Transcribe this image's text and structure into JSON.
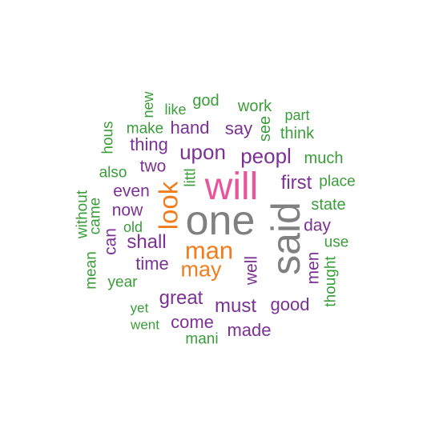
{
  "colors": {
    "background": "#ffffff",
    "grey": "#808080",
    "pink": "#e7559c",
    "orange": "#f07d1e",
    "purple": "#7b3294",
    "green": "#3a9d3a"
  },
  "words": [
    {
      "text": "one",
      "color": "grey"
    },
    {
      "text": "said",
      "color": "grey"
    },
    {
      "text": "will",
      "color": "pink"
    },
    {
      "text": "look",
      "color": "orange"
    },
    {
      "text": "man",
      "color": "orange"
    },
    {
      "text": "may",
      "color": "orange"
    },
    {
      "text": "peopl",
      "color": "purple"
    },
    {
      "text": "upon",
      "color": "purple"
    },
    {
      "text": "first",
      "color": "purple"
    },
    {
      "text": "shall",
      "color": "purple"
    },
    {
      "text": "great",
      "color": "purple"
    },
    {
      "text": "must",
      "color": "purple"
    },
    {
      "text": "time",
      "color": "purple"
    },
    {
      "text": "good",
      "color": "purple"
    },
    {
      "text": "hand",
      "color": "purple"
    },
    {
      "text": "say",
      "color": "purple"
    },
    {
      "text": "thing",
      "color": "purple"
    },
    {
      "text": "come",
      "color": "purple"
    },
    {
      "text": "made",
      "color": "purple"
    },
    {
      "text": "even",
      "color": "purple"
    },
    {
      "text": "now",
      "color": "purple"
    },
    {
      "text": "two",
      "color": "purple"
    },
    {
      "text": "day",
      "color": "purple"
    },
    {
      "text": "well",
      "color": "purple"
    },
    {
      "text": "can",
      "color": "purple"
    },
    {
      "text": "men",
      "color": "purple"
    },
    {
      "text": "work",
      "color": "green"
    },
    {
      "text": "god",
      "color": "green"
    },
    {
      "text": "like",
      "color": "green"
    },
    {
      "text": "new",
      "color": "green"
    },
    {
      "text": "part",
      "color": "green"
    },
    {
      "text": "see",
      "color": "green"
    },
    {
      "text": "think",
      "color": "green"
    },
    {
      "text": "make",
      "color": "green"
    },
    {
      "text": "hous",
      "color": "green"
    },
    {
      "text": "much",
      "color": "green"
    },
    {
      "text": "also",
      "color": "green"
    },
    {
      "text": "littl",
      "color": "green"
    },
    {
      "text": "place",
      "color": "green"
    },
    {
      "text": "state",
      "color": "green"
    },
    {
      "text": "without",
      "color": "green"
    },
    {
      "text": "came",
      "color": "green"
    },
    {
      "text": "old",
      "color": "green"
    },
    {
      "text": "use",
      "color": "green"
    },
    {
      "text": "mean",
      "color": "green"
    },
    {
      "text": "year",
      "color": "green"
    },
    {
      "text": "thought",
      "color": "green"
    },
    {
      "text": "yet",
      "color": "green"
    },
    {
      "text": "went",
      "color": "green"
    },
    {
      "text": "mani",
      "color": "green"
    }
  ]
}
